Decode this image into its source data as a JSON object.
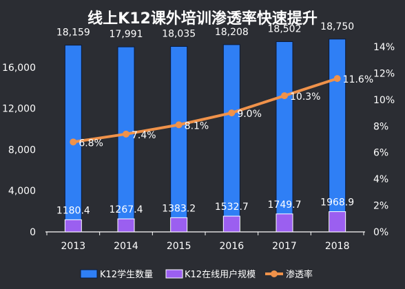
{
  "chart_data": {
    "type": "bar",
    "title": "线上K12课外培训渗透率快速提升",
    "categories": [
      "2013",
      "2014",
      "2015",
      "2016",
      "2017",
      "2018"
    ],
    "series": [
      {
        "name": "K12学生数量",
        "type": "bar",
        "axis": "left",
        "color": "#2f7ff5",
        "values": [
          18159,
          17991,
          18035,
          18208,
          18502,
          18750
        ],
        "labels": [
          "18,159",
          "17,991",
          "18,035",
          "18,208",
          "18,502",
          "18,750"
        ]
      },
      {
        "name": "K12在线用户规模",
        "type": "bar",
        "axis": "left",
        "color": "#9b5ff0",
        "values": [
          1180.4,
          1267.4,
          1383.2,
          1532.7,
          1749.7,
          1968.9
        ],
        "labels": [
          "1180.4",
          "1267.4",
          "1383.2",
          "1532.7",
          "1749.7",
          "1968.9"
        ]
      },
      {
        "name": "渗透率",
        "type": "line",
        "axis": "right",
        "color": "#f0924a",
        "values": [
          6.8,
          7.4,
          8.1,
          9.0,
          10.3,
          11.6
        ],
        "labels": [
          "6.8%",
          "7.4%",
          "8.1%",
          "9.0%",
          "10.3%",
          "11.6%"
        ]
      }
    ],
    "y_left": {
      "lim": [
        0,
        18000
      ],
      "ticks": [
        0,
        4000,
        8000,
        12000,
        16000
      ],
      "tick_labels": [
        "0",
        "4,000",
        "8,000",
        "12,000",
        "16,000"
      ]
    },
    "y_right": {
      "lim": [
        0,
        14
      ],
      "ticks": [
        0,
        2,
        4,
        6,
        8,
        10,
        12,
        14
      ],
      "tick_labels": [
        "0%",
        "2%",
        "4%",
        "6%",
        "8%",
        "10%",
        "12%",
        "14%"
      ]
    },
    "grid": false,
    "legend": "bottom",
    "background": "#2b2d33",
    "text_color": "#ffffff"
  }
}
